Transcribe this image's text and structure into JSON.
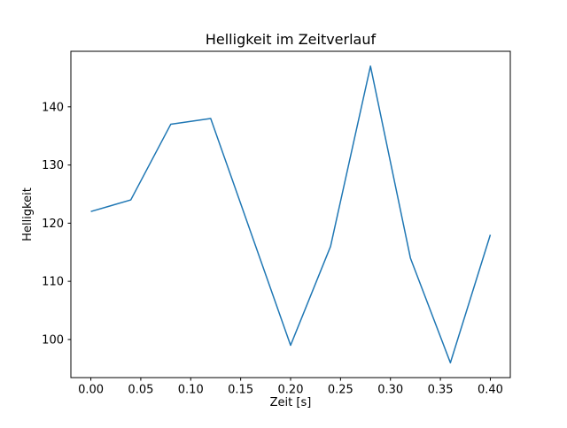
{
  "figure": {
    "background": "#ffffff"
  },
  "chart_data": {
    "type": "line",
    "title": "Helligkeit im Zeitverlauf",
    "xlabel": "Zeit [s]",
    "ylabel": "Helligkeit",
    "x": [
      0.0,
      0.04,
      0.08,
      0.12,
      0.16,
      0.2,
      0.24,
      0.28,
      0.32,
      0.36,
      0.4
    ],
    "values": [
      122,
      124,
      137,
      138,
      118.5,
      99,
      116,
      147,
      114,
      96,
      118
    ],
    "line_color": "#1f77b4",
    "line_width": 1.5,
    "xlim": [
      -0.02,
      0.42
    ],
    "ylim": [
      93.45,
      149.55
    ],
    "xticks": [
      0.0,
      0.05,
      0.1,
      0.15,
      0.2,
      0.25,
      0.3,
      0.35,
      0.4
    ],
    "xtick_labels": [
      "0.00",
      "0.05",
      "0.10",
      "0.15",
      "0.20",
      "0.25",
      "0.30",
      "0.35",
      "0.40"
    ],
    "yticks": [
      100,
      110,
      120,
      130,
      140
    ],
    "ytick_labels": [
      "100",
      "110",
      "120",
      "130",
      "140"
    ],
    "grid": false,
    "legend": "none",
    "spine_color": "#000000"
  }
}
